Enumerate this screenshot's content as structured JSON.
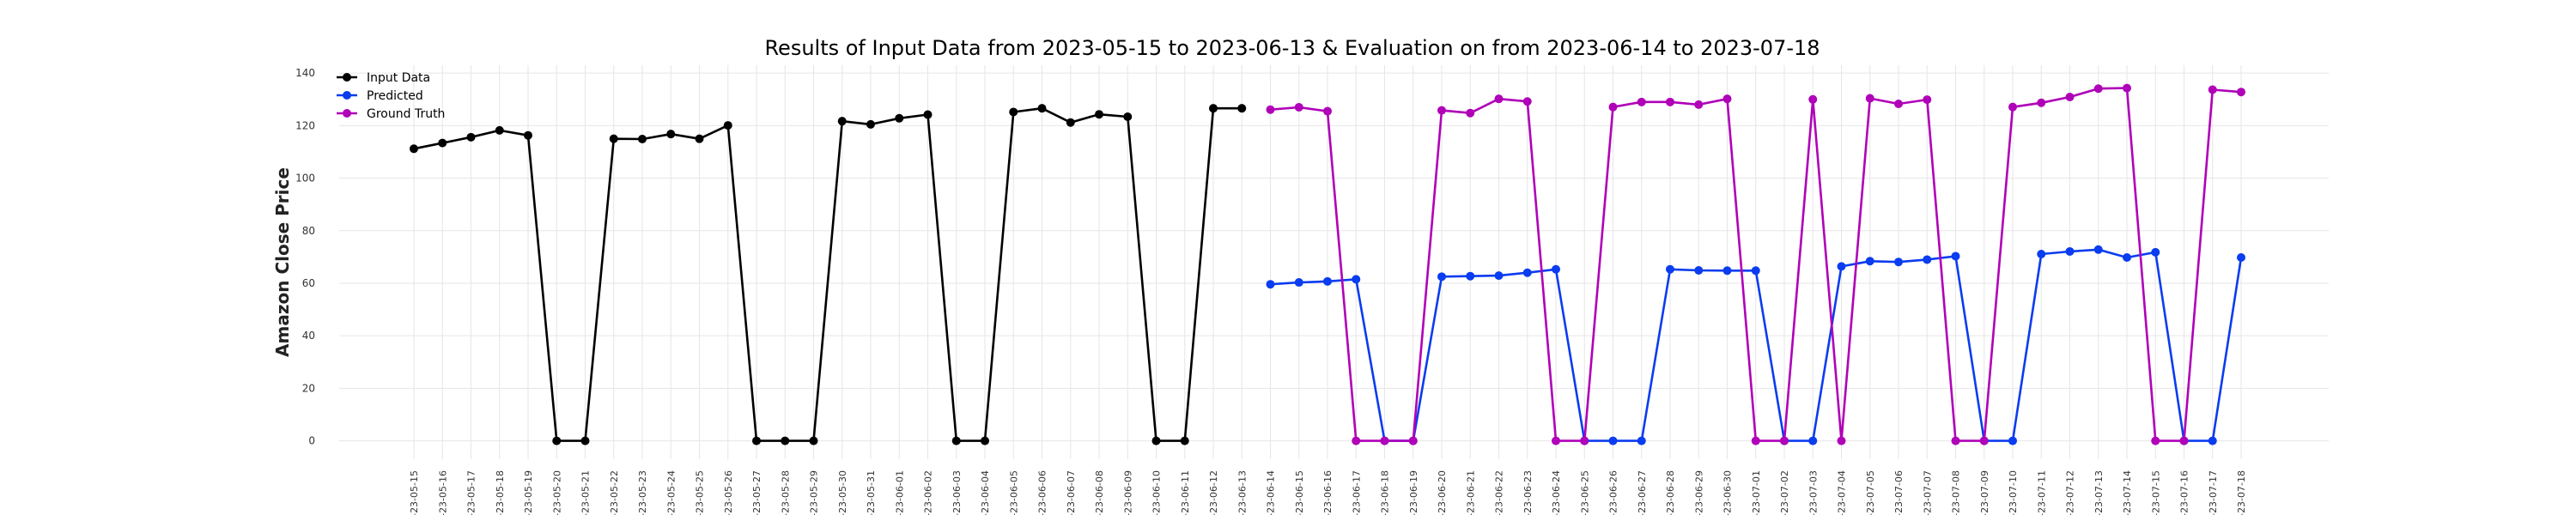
{
  "chart_data": {
    "type": "line",
    "title": "Results of Input Data from 2023-05-15 to 2023-06-13 & Evaluation on from 2023-06-14 to 2023-07-18",
    "ylabel": "Amazon Close Price",
    "xlabel": "",
    "ylim": [
      -7,
      143
    ],
    "yticks": [
      0,
      20,
      40,
      60,
      80,
      100,
      120,
      140
    ],
    "grid": true,
    "legend_position": "top-left",
    "x_labels": [
      "-23-05-15",
      "-23-05-16",
      "-23-05-17",
      "-23-05-18",
      "-23-05-19",
      "-23-05-20",
      "-23-05-21",
      "-23-05-22",
      "-23-05-23",
      "-23-05-24",
      "-23-05-25",
      "-23-05-26",
      "-23-05-27",
      "-23-05-28",
      "-23-05-29",
      "-23-05-30",
      "-23-05-31",
      "-23-06-01",
      "-23-06-02",
      "-23-06-03",
      "-23-06-04",
      "-23-06-05",
      "-23-06-06",
      "-23-06-07",
      "-23-06-08",
      "-23-06-09",
      "-23-06-10",
      "-23-06-11",
      "-23-06-12",
      "-23-06-13",
      "-23-06-14",
      "-23-06-15",
      "-23-06-16",
      "-23-06-17",
      "-23-06-18",
      "-23-06-19",
      "-23-06-20",
      "-23-06-21",
      "-23-06-22",
      "-23-06-23",
      "-23-06-24",
      "-23-06-25",
      "-23-06-26",
      "-23-06-27",
      "-23-06-28",
      "-23-06-29",
      "-23-06-30",
      "-23-07-01",
      "-23-07-02",
      "-23-07-03",
      "-23-07-04",
      "-23-07-05",
      "-23-07-06",
      "-23-07-07",
      "-23-07-08",
      "-23-07-09",
      "-23-07-10",
      "-23-07-11",
      "-23-07-12",
      "-23-07-13",
      "-23-07-14",
      "-23-07-15",
      "-23-07-16",
      "-23-07-17",
      "-23-07-18"
    ],
    "series": [
      {
        "name": "Input Data",
        "color": "#000000",
        "x": [
          "-23-05-15",
          "-23-05-16",
          "-23-05-17",
          "-23-05-18",
          "-23-05-19",
          "-23-05-20",
          "-23-05-21",
          "-23-05-22",
          "-23-05-23",
          "-23-05-24",
          "-23-05-25",
          "-23-05-26",
          "-23-05-27",
          "-23-05-28",
          "-23-05-29",
          "-23-05-30",
          "-23-05-31",
          "-23-06-01",
          "-23-06-02",
          "-23-06-03",
          "-23-06-04",
          "-23-06-05",
          "-23-06-06",
          "-23-06-07",
          "-23-06-08",
          "-23-06-09",
          "-23-06-10",
          "-23-06-11",
          "-23-06-12",
          "-23-06-13"
        ],
        "values": [
          111.2,
          113.4,
          115.6,
          118.2,
          116.3,
          0,
          0,
          115.0,
          114.9,
          116.8,
          115.0,
          120.1,
          0,
          0,
          0,
          121.7,
          120.5,
          122.8,
          124.2,
          0,
          0,
          125.2,
          126.6,
          121.2,
          124.3,
          123.4,
          0,
          0,
          126.6,
          126.6
        ]
      },
      {
        "name": "Predicted",
        "color": "#0a3cf0",
        "x": [
          "-23-06-14",
          "-23-06-15",
          "-23-06-16",
          "-23-06-17",
          "-23-06-18",
          "-23-06-19",
          "-23-06-20",
          "-23-06-21",
          "-23-06-22",
          "-23-06-23",
          "-23-06-24",
          "-23-06-25",
          "-23-06-26",
          "-23-06-27",
          "-23-06-28",
          "-23-06-29",
          "-23-06-30",
          "-23-07-01",
          "-23-07-02",
          "-23-07-03",
          "-23-07-04",
          "-23-07-05",
          "-23-07-06",
          "-23-07-07",
          "-23-07-08",
          "-23-07-09",
          "-23-07-10",
          "-23-07-11",
          "-23-07-12",
          "-23-07-13",
          "-23-07-14",
          "-23-07-15",
          "-23-07-16",
          "-23-07-17",
          "-23-07-18"
        ],
        "values": [
          59.6,
          60.3,
          60.7,
          61.5,
          0,
          0,
          62.5,
          62.7,
          62.9,
          64.0,
          65.3,
          0,
          0,
          0,
          65.3,
          64.9,
          64.8,
          64.8,
          0,
          0,
          66.4,
          68.4,
          68.1,
          69.0,
          70.3,
          0,
          0,
          71.1,
          72.1,
          72.8,
          69.8,
          71.8,
          0,
          0,
          69.8
        ]
      },
      {
        "name": "Ground Truth",
        "color": "#b000b8",
        "x": [
          "-23-06-14",
          "-23-06-15",
          "-23-06-16",
          "-23-06-17",
          "-23-06-18",
          "-23-06-19",
          "-23-06-20",
          "-23-06-21",
          "-23-06-22",
          "-23-06-23",
          "-23-06-24",
          "-23-06-25",
          "-23-06-26",
          "-23-06-27",
          "-23-06-28",
          "-23-06-29",
          "-23-06-30",
          "-23-07-01",
          "-23-07-02",
          "-23-07-03",
          "-23-07-04",
          "-23-07-05",
          "-23-07-06",
          "-23-07-07",
          "-23-07-08",
          "-23-07-09",
          "-23-07-10",
          "-23-07-11",
          "-23-07-12",
          "-23-07-13",
          "-23-07-14",
          "-23-07-15",
          "-23-07-16",
          "-23-07-17",
          "-23-07-18"
        ],
        "values": [
          126.1,
          127.0,
          125.5,
          0,
          0,
          0,
          125.8,
          124.8,
          130.2,
          129.2,
          0,
          0,
          127.1,
          129.0,
          129.0,
          128.0,
          130.2,
          0,
          0,
          130.0,
          0,
          130.4,
          128.3,
          129.9,
          0,
          0,
          127.1,
          128.7,
          130.9,
          134.1,
          134.3,
          0,
          0,
          133.7,
          132.8
        ]
      }
    ]
  }
}
